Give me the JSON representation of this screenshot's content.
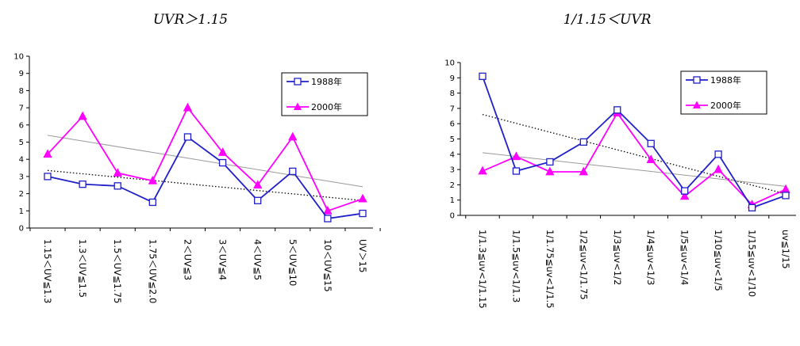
{
  "chart_data": [
    {
      "type": "line",
      "title": "UVR＞1.15",
      "categories": [
        "1.15＜UV≦1.3",
        "1.3＜UV≦1.5",
        "1.5＜UV≦1.75",
        "1.75＜UV≦2.0",
        "2＜UV≦3",
        "3＜UV≦4",
        "4＜UV≦5",
        "5＜UV≦10",
        "10＜UV≦15",
        "UV＞15"
      ],
      "series": [
        {
          "name": "1988年",
          "values": [
            3.0,
            2.55,
            2.45,
            1.5,
            5.3,
            3.8,
            1.6,
            3.3,
            0.55,
            0.85
          ],
          "color": "#1f1fc8",
          "marker": "square",
          "trend": {
            "from": 3.35,
            "to": 1.6,
            "style": "dotted",
            "color": "#000000"
          }
        },
        {
          "name": "2000年",
          "values": [
            4.3,
            6.5,
            3.2,
            2.75,
            7.0,
            4.4,
            2.5,
            5.3,
            1.0,
            1.7
          ],
          "color": "#ff00ff",
          "marker": "triangle",
          "trend": {
            "from": 5.4,
            "to": 2.4,
            "style": "solid",
            "color": "#999999"
          }
        }
      ],
      "ylim": [
        0,
        10
      ],
      "yticks": [
        "0",
        "1",
        "2",
        "3",
        "4",
        "5",
        "6",
        "7",
        "8",
        "9",
        "10"
      ],
      "legend": "top-right"
    },
    {
      "type": "line",
      "title": "1/1.15＜UVR",
      "categories": [
        "1/1.3≦uv<1/1.15",
        "1/1.5≦uv<1/1.3",
        "1/1.75≦uv<1/1.5",
        "1/2≦uv<1/1.75",
        "1/3≦uv<1/2",
        "1/4≦uv<1/3",
        "1/5≦uv<1/4",
        "1/10≦uv<1/5",
        "1/15≦uv<1/10",
        "uv≦1/15"
      ],
      "series": [
        {
          "name": "1988年",
          "values": [
            9.1,
            2.9,
            3.5,
            4.8,
            6.9,
            4.7,
            1.6,
            4.0,
            0.5,
            1.3
          ],
          "color": "#1f1fc8",
          "marker": "square",
          "trend": {
            "from": 6.6,
            "to": 1.4,
            "style": "dotted",
            "color": "#000000"
          }
        },
        {
          "name": "2000年",
          "values": [
            2.9,
            3.85,
            2.85,
            2.85,
            6.7,
            3.65,
            1.25,
            3.0,
            0.7,
            1.7
          ],
          "color": "#ff00ff",
          "marker": "triangle",
          "trend": {
            "from": 4.1,
            "to": 1.9,
            "style": "solid",
            "color": "#999999"
          }
        }
      ],
      "ylim": [
        0,
        10
      ],
      "yticks": [
        "0",
        "1",
        "2",
        "3",
        "4",
        "5",
        "6",
        "7",
        "8",
        "9",
        "10"
      ],
      "legend": "top-right"
    }
  ]
}
